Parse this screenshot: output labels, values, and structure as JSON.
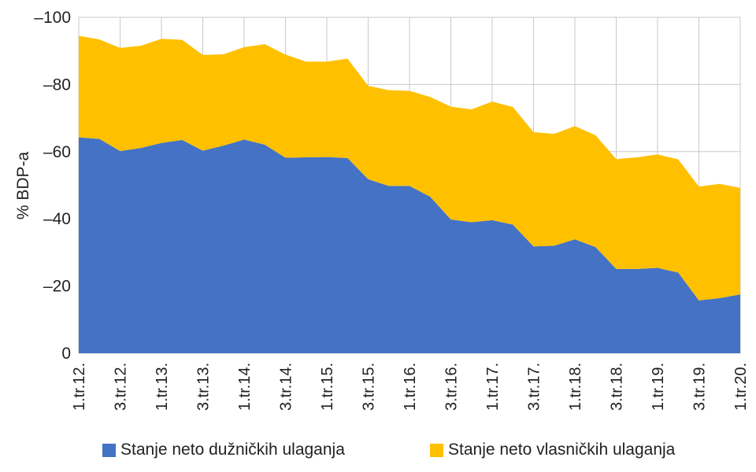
{
  "chart_data": {
    "type": "area",
    "stacked": true,
    "ylabel": "% BDP-a",
    "ylim": [
      0,
      -100
    ],
    "ytick_values": [
      0,
      -20,
      -40,
      -60,
      -80,
      -100
    ],
    "ytick_labels": [
      "0",
      "–20",
      "–40",
      "–60",
      "–80",
      "–100"
    ],
    "categories": [
      "1.tr.12.",
      "2.tr.12.",
      "3.tr.12.",
      "4.tr.12.",
      "1.tr.13.",
      "2.tr.13.",
      "3.tr.13.",
      "4.tr.13.",
      "1.tr.14.",
      "2.tr.14.",
      "3.tr.14.",
      "4.tr.14.",
      "1.tr.15.",
      "2.tr.15.",
      "3.tr.15.",
      "4.tr.15.",
      "1.tr.16.",
      "2.tr.16.",
      "3.tr.16.",
      "4.tr.16.",
      "1.tr.17.",
      "2.tr.17.",
      "3.tr.17.",
      "4.tr.17.",
      "1.tr.18.",
      "2.tr.18.",
      "3.tr.18.",
      "4.tr.18.",
      "1.tr.19.",
      "2.tr.19.",
      "3.tr.19.",
      "4.tr.19.",
      "1.tr.20."
    ],
    "xtick_labels": [
      "1.tr.12.",
      "3.tr.12.",
      "1.tr.13.",
      "3.tr.13.",
      "1.tr.14.",
      "3.tr.14.",
      "1.tr.15.",
      "3.tr.15.",
      "1.tr.16.",
      "3.tr.16.",
      "1.tr.17.",
      "3.tr.17.",
      "1.tr.18.",
      "3.tr.18.",
      "1.tr.19.",
      "3.tr.19.",
      "1.tr.20."
    ],
    "series": [
      {
        "name": "Stanje neto dužničkih ulaganja",
        "color": "#4472C4",
        "values": [
          -64.3,
          -63.8,
          -60.2,
          -61.1,
          -62.6,
          -63.5,
          -60.3,
          -61.8,
          -63.6,
          -62.1,
          -58.2,
          -58.3,
          -58.4,
          -58.1,
          -51.8,
          -49.8,
          -49.8,
          -46.6,
          -39.8,
          -39.0,
          -39.6,
          -38.3,
          -31.8,
          -32.0,
          -33.9,
          -31.6,
          -25.1,
          -25.1,
          -25.4,
          -24.0,
          -15.7,
          -16.4,
          -17.5
        ]
      },
      {
        "name": "Stanje neto vlasničkih ulaganja",
        "color": "#FFC000",
        "values": [
          -30.2,
          -29.6,
          -30.7,
          -30.4,
          -31.0,
          -29.8,
          -28.5,
          -27.2,
          -27.5,
          -29.9,
          -30.7,
          -28.5,
          -28.4,
          -29.6,
          -27.8,
          -28.5,
          -28.3,
          -29.7,
          -33.6,
          -33.6,
          -35.3,
          -35.0,
          -34.0,
          -33.3,
          -33.7,
          -33.3,
          -32.7,
          -33.2,
          -33.8,
          -33.7,
          -33.9,
          -34.0,
          -31.7
        ]
      }
    ],
    "legend_position": "bottom",
    "grid": true
  }
}
